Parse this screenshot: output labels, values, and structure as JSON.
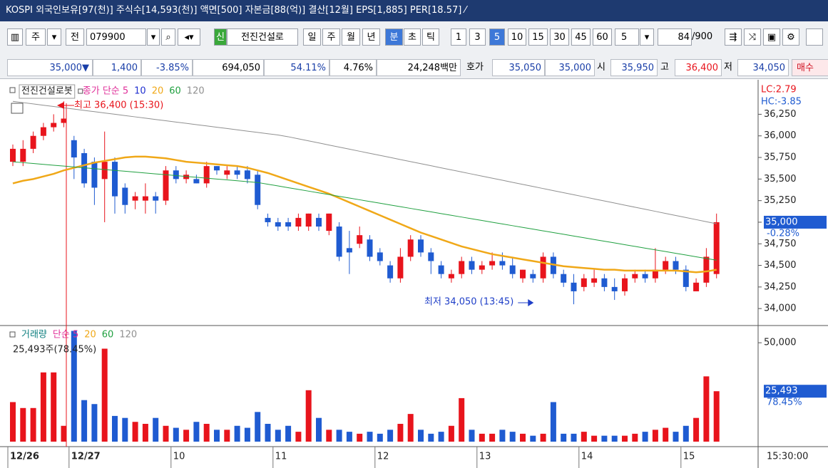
{
  "title_bar": {
    "text": "KOSPI 외국인보유[97(천)] 주식수[14,593(천)] 액면[500] 자본금[88(억)] 결산[12월] EPS[1,885] PER[18.57] ⁄"
  },
  "toolbar": {
    "items": [
      "주",
      "전",
      "079900",
      "신",
      "전진건설로",
      "일",
      "주",
      "월",
      "년",
      "분",
      "초",
      "틱",
      "1",
      "3",
      "5",
      "10",
      "15",
      "30",
      "45",
      "60",
      "5",
      "84",
      "/900"
    ]
  },
  "quote_bar": {
    "items": [
      "35,000▼",
      "1,400",
      "-3.85%",
      "694,050",
      "54.11%",
      "4.76%",
      "24,248백만",
      "호가",
      "35,050",
      "35,000",
      "시",
      "35,950",
      "고",
      "36,400",
      "저",
      "34,050",
      "매수"
    ]
  },
  "time_label": "15:30:00",
  "chart_data": [
    {
      "type": "candlestick",
      "name": "전진건설로봇",
      "legend": [
        {
          "text": "종가 단순 5",
          "color": "#e0309a"
        },
        {
          "text": "10",
          "color": "#2030d0"
        }
      ],
      "high_label": "최고 36,400 (15:30)",
      "low_label": "최저 34,050 (13:45)",
      "lc_label": "LC:2.79",
      "hc_label": "HC:-3.85",
      "price_label": "35,000",
      "change_label": "-0.28%",
      "up_color": "#e8141c",
      "down_color": "#1f5bd1",
      "categories": [
        "12/26",
        null,
        null,
        null,
        null,
        null,
        "12/27",
        null,
        null,
        null,
        null,
        null,
        null,
        null,
        null,
        null,
        "10",
        null,
        null,
        null,
        null,
        null,
        null,
        null,
        null,
        null,
        "11",
        null,
        null,
        null,
        null,
        null,
        null,
        null,
        null,
        null,
        "12",
        null,
        null,
        null,
        null,
        null,
        null,
        null,
        null,
        null,
        "13",
        null,
        null,
        null,
        null,
        null,
        null,
        null,
        null,
        null,
        "14",
        null,
        null,
        null,
        null,
        null,
        null,
        null,
        null,
        null,
        "15",
        null,
        null,
        null
      ],
      "open": [
        35700,
        35700,
        35850,
        36000,
        36100,
        36150,
        35950,
        35800,
        35700,
        35500,
        35700,
        35400,
        35250,
        35250,
        35300,
        35250,
        35600,
        35500,
        35500,
        35450,
        35650,
        35550,
        35600,
        35600,
        35550,
        35050,
        35000,
        35000,
        34950,
        34950,
        35050,
        34900,
        34950,
        34700,
        34750,
        34800,
        34650,
        34500,
        34350,
        34600,
        34800,
        34650,
        34500,
        34350,
        34400,
        34550,
        34450,
        34500,
        34550,
        34500,
        34350,
        34400,
        34350,
        34600,
        34400,
        34300,
        34250,
        34300,
        34350,
        34250,
        34200,
        34350,
        34400,
        34350,
        34450,
        34550,
        34450,
        34200,
        34300,
        34400
      ],
      "close": [
        35850,
        35850,
        36000,
        36100,
        36150,
        36200,
        35750,
        35450,
        35400,
        35700,
        35300,
        35200,
        35300,
        35300,
        35250,
        35600,
        35500,
        35550,
        35450,
        35650,
        35600,
        35600,
        35550,
        35500,
        35200,
        35000,
        34950,
        34950,
        35050,
        35100,
        34950,
        35100,
        34600,
        34650,
        34850,
        34600,
        34550,
        34350,
        34600,
        34800,
        34650,
        34550,
        34400,
        34400,
        34550,
        34450,
        34500,
        34550,
        34500,
        34400,
        34450,
        34350,
        34600,
        34400,
        34300,
        34200,
        34350,
        34350,
        34250,
        34200,
        34350,
        34400,
        34350,
        34450,
        34550,
        34450,
        34250,
        34300,
        34600,
        35000
      ],
      "high": [
        35900,
        35950,
        36050,
        36150,
        36250,
        36400,
        36000,
        35850,
        35750,
        36050,
        35750,
        35450,
        35350,
        35450,
        35350,
        35650,
        35650,
        35600,
        35550,
        35700,
        35650,
        35650,
        35650,
        35650,
        35600,
        35100,
        35050,
        35050,
        35100,
        35100,
        35100,
        35100,
        35000,
        34900,
        34950,
        34850,
        34700,
        34550,
        34700,
        34850,
        34850,
        34700,
        34550,
        34450,
        34600,
        34600,
        34550,
        34650,
        34650,
        34600,
        34450,
        34450,
        34650,
        34650,
        34450,
        34400,
        34400,
        34450,
        34400,
        34350,
        34400,
        34450,
        34450,
        34700,
        34600,
        34600,
        34500,
        34350,
        34700,
        35100
      ],
      "low": [
        35650,
        35650,
        35800,
        35950,
        36050,
        36100,
        35500,
        35400,
        35200,
        35000,
        35100,
        35100,
        35150,
        35100,
        35100,
        35200,
        35450,
        35450,
        35450,
        35400,
        35550,
        35500,
        35500,
        35450,
        35150,
        34950,
        34900,
        34900,
        34900,
        34900,
        34900,
        34850,
        34550,
        34400,
        34700,
        34550,
        34500,
        34300,
        34300,
        34550,
        34600,
        34400,
        34350,
        34300,
        34350,
        34400,
        34400,
        34450,
        34450,
        34350,
        34300,
        34300,
        34300,
        34350,
        34250,
        34050,
        34200,
        34250,
        34200,
        34100,
        34150,
        34300,
        34300,
        34300,
        34400,
        34400,
        34200,
        34200,
        34250,
        34350
      ],
      "series": [
        {
          "name": "20",
          "color": "#f0a818",
          "values": [
            35450,
            35480,
            35500,
            35530,
            35560,
            35600,
            35630,
            35660,
            35690,
            35710,
            35730,
            35750,
            35760,
            35760,
            35750,
            35740,
            35720,
            35700,
            35690,
            35680,
            35670,
            35660,
            35650,
            35630,
            35600,
            35570,
            35530,
            35490,
            35450,
            35410,
            35370,
            35330,
            35280,
            35230,
            35180,
            35130,
            35080,
            35030,
            34980,
            34930,
            34880,
            34840,
            34800,
            34760,
            34720,
            34690,
            34660,
            34630,
            34610,
            34590,
            34570,
            34550,
            34530,
            34510,
            34490,
            34480,
            34470,
            34460,
            34450,
            34450,
            34440,
            34440,
            34440,
            34440,
            34440,
            34440,
            34430,
            34420,
            34430,
            34450
          ]
        },
        {
          "name": "60",
          "color": "#20a040",
          "values": [
            35700,
            35690,
            35680,
            35670,
            35660,
            35650,
            35640,
            35630,
            35620,
            35610,
            35600,
            35590,
            35580,
            35570,
            35560,
            35550,
            35540,
            35530,
            35520,
            35510,
            35500,
            35490,
            35480,
            35470,
            35460,
            35440,
            35420,
            35400,
            35380,
            35360,
            35340,
            35320,
            35300,
            35280,
            35260,
            35240,
            35220,
            35200,
            35180,
            35160,
            35140,
            35120,
            35100,
            35080,
            35060,
            35040,
            35020,
            35000,
            34980,
            34960,
            34940,
            34920,
            34900,
            34880,
            34860,
            34840,
            34820,
            34800,
            34780,
            34760,
            34740,
            34720,
            34700,
            34680,
            34660,
            34640,
            34620,
            34600,
            34580,
            34560
          ]
        },
        {
          "name": "120",
          "color": "#909090",
          "values": [
            36400,
            36385,
            36370,
            36355,
            36340,
            36325,
            36310,
            36295,
            36280,
            36265,
            36250,
            36235,
            36220,
            36205,
            36190,
            36175,
            36160,
            36145,
            36130,
            36115,
            36100,
            36085,
            36070,
            36055,
            36040,
            36025,
            36010,
            35990,
            35966,
            35942,
            35918,
            35894,
            35870,
            35846,
            35822,
            35798,
            35774,
            35750,
            35726,
            35702,
            35678,
            35654,
            35630,
            35606,
            35582,
            35558,
            35534,
            35510,
            35486,
            35462,
            35438,
            35414,
            35390,
            35366,
            35342,
            35318,
            35294,
            35270,
            35246,
            35222,
            35198,
            35174,
            35150,
            35126,
            35102,
            35078,
            35054,
            35030,
            35006,
            34982
          ]
        }
      ],
      "ylim": [
        33820,
        36600
      ],
      "yticks": [
        {
          "value": 34000,
          "label": "34,000"
        },
        {
          "value": 34250,
          "label": "34,250"
        },
        {
          "value": 34500,
          "label": "34,500"
        },
        {
          "value": 34750,
          "label": "34,750"
        },
        {
          "value": 35000,
          "label": "35,000"
        },
        {
          "value": 35250,
          "label": "35,250"
        },
        {
          "value": 35500,
          "label": "35,500"
        },
        {
          "value": 35750,
          "label": "35,750"
        },
        {
          "value": 36000,
          "label": "36,000"
        },
        {
          "value": 36250,
          "label": "36,250"
        }
      ]
    },
    {
      "type": "bar",
      "legend": [
        {
          "text": "거래량",
          "color": "#108080"
        },
        {
          "text": "단순 5",
          "color": "#e0309a"
        },
        {
          "text": "20",
          "color": "#f0a818"
        },
        {
          "text": "60",
          "color": "#20a040"
        },
        {
          "text": "120",
          "color": "#909090"
        }
      ],
      "info": "25,493주(78.45%)",
      "last_label": "25,493",
      "ratio_label": "78.45%",
      "values": [
        20000,
        17000,
        17000,
        35000,
        35000,
        8000,
        56000,
        21000,
        19000,
        47000,
        13000,
        12000,
        10000,
        9000,
        12000,
        8000,
        7000,
        6000,
        10000,
        9000,
        6000,
        6000,
        8000,
        7000,
        15000,
        9000,
        6000,
        8000,
        5000,
        26000,
        12000,
        6000,
        6000,
        5000,
        4000,
        5000,
        4000,
        6000,
        9000,
        14000,
        6000,
        4000,
        5000,
        8000,
        22000,
        6000,
        4000,
        4000,
        6000,
        5000,
        4000,
        3000,
        4000,
        20000,
        4000,
        4000,
        5000,
        3000,
        3000,
        3000,
        3000,
        4000,
        5000,
        6000,
        7000,
        5000,
        8000,
        12000,
        33000,
        25493
      ],
      "ylim": [
        0,
        56900
      ],
      "yticks": [
        {
          "value": 50000,
          "label": "50,000"
        }
      ]
    }
  ]
}
